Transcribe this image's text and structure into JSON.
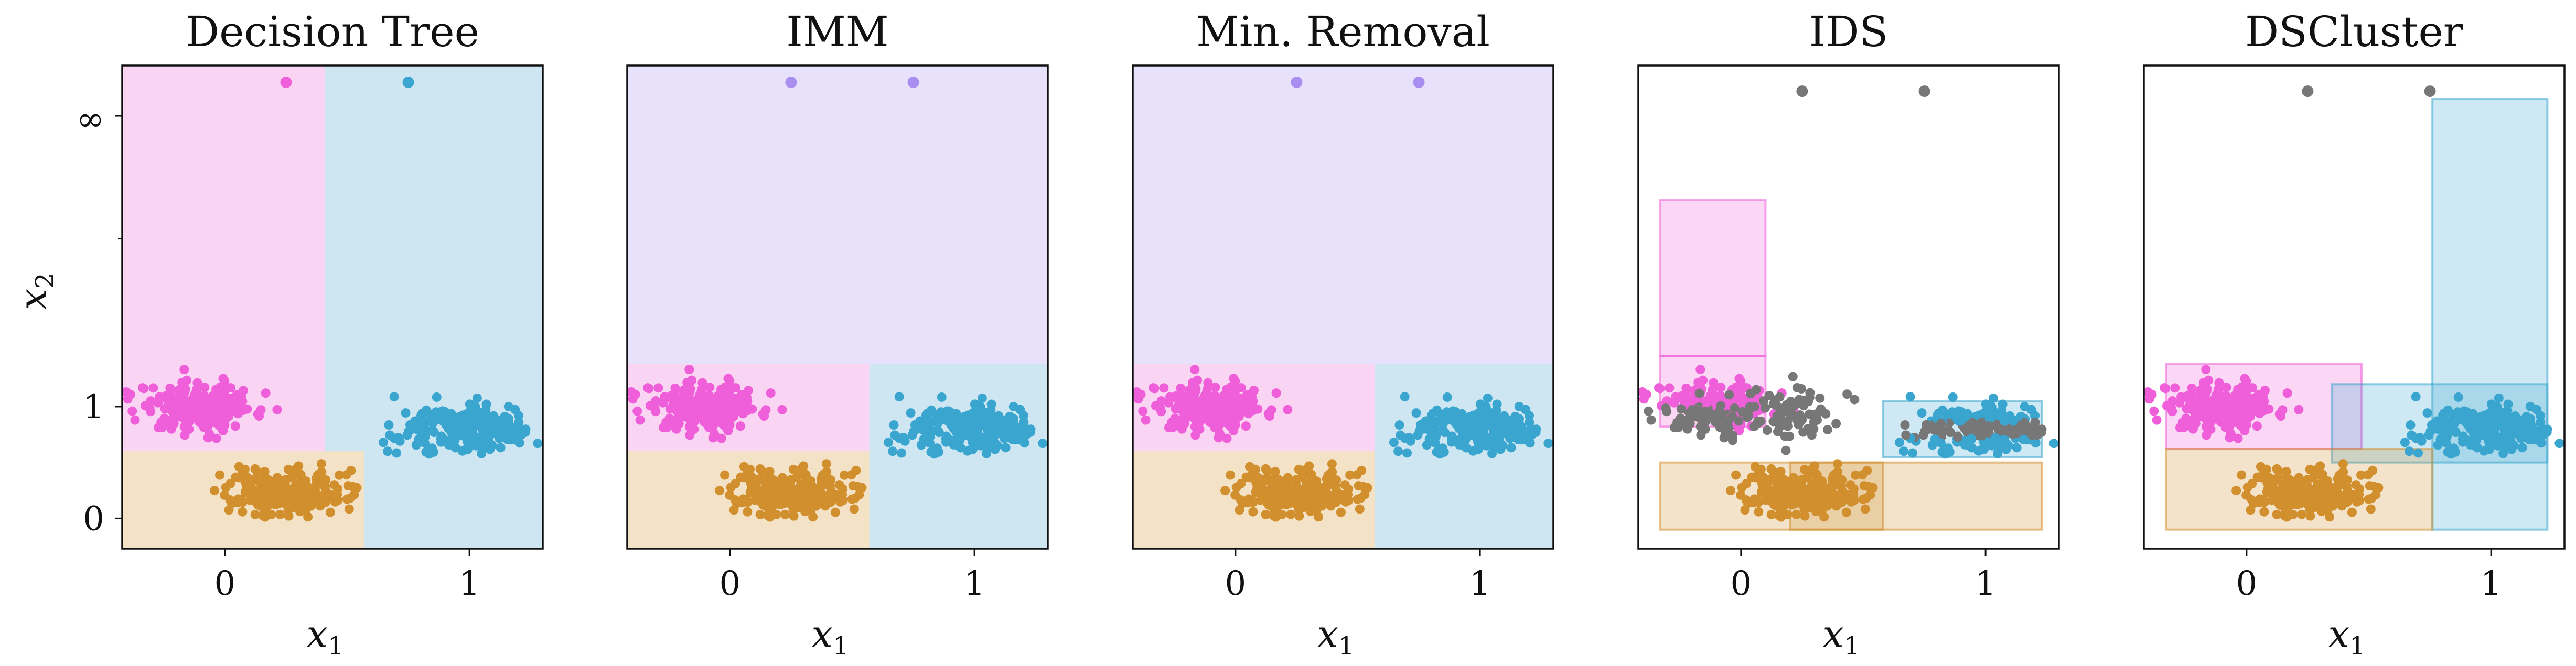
{
  "chart_data": {
    "type": "scatter",
    "description_note": "",
    "shared": {
      "x_ticks": [
        0,
        1
      ],
      "y_ticks": [
        {
          "value": 0,
          "label": "0"
        },
        {
          "value": 1,
          "label": "1"
        },
        {
          "value": 3.6,
          "label": "∞"
        }
      ],
      "y_minor_tick": 2.5,
      "xlim": [
        -0.42,
        1.3
      ],
      "ylim": [
        -0.27,
        4.05
      ],
      "y_inf_value": 3.9,
      "xlabel": "x",
      "xlabel_sub": "1",
      "ylabel": "x",
      "ylabel_sub": "2",
      "colors": {
        "pink": "#ef5fd9",
        "blue": "#3aa6d0",
        "orange": "#d18f2e",
        "purple": "#a98ef0",
        "gray": "#777777"
      },
      "clusters": [
        {
          "name": "pink-cluster",
          "cx": -0.1,
          "cy": 1.0,
          "sx": 0.12,
          "sy": 0.11
        },
        {
          "name": "blue-cluster",
          "cx": 0.97,
          "cy": 0.8,
          "sx": 0.12,
          "sy": 0.1
        },
        {
          "name": "orange-cluster",
          "cx": 0.25,
          "cy": 0.22,
          "sx": 0.12,
          "sy": 0.09
        }
      ],
      "outliers": [
        {
          "x": 0.25
        },
        {
          "x": 0.75
        }
      ]
    },
    "panels": [
      {
        "title": "Decision Tree",
        "outlier_colors": [
          "pink",
          "blue"
        ],
        "regions": [
          {
            "x0": -0.42,
            "x1": 0.41,
            "y0": 0.6,
            "y1": 4.05,
            "color": "#fad5f3",
            "border": false
          },
          {
            "x0": 0.41,
            "x1": 1.3,
            "y0": -0.27,
            "y1": 4.05,
            "color": "#cde6f1",
            "border": false
          },
          {
            "x0": -0.42,
            "x1": 0.57,
            "y0": -0.27,
            "y1": 0.6,
            "color": "#f3e2c6",
            "border": false
          }
        ]
      },
      {
        "title": "IMM",
        "outlier_colors": [
          "purple",
          "purple"
        ],
        "regions": [
          {
            "x0": -0.42,
            "x1": 1.3,
            "y0": 1.38,
            "y1": 4.05,
            "color": "#e7e1fb",
            "border": false
          },
          {
            "x0": -0.42,
            "x1": 0.57,
            "y0": 0.6,
            "y1": 1.38,
            "color": "#fad5f3",
            "border": false
          },
          {
            "x0": 0.57,
            "x1": 1.3,
            "y0": -0.27,
            "y1": 1.38,
            "color": "#cde6f1",
            "border": false
          },
          {
            "x0": -0.42,
            "x1": 0.57,
            "y0": -0.27,
            "y1": 0.6,
            "color": "#f3e2c6",
            "border": false
          }
        ]
      },
      {
        "title": "Min. Removal",
        "outlier_colors": [
          "purple",
          "purple"
        ],
        "regions": [
          {
            "x0": -0.42,
            "x1": 1.3,
            "y0": 1.38,
            "y1": 4.05,
            "color": "#e7e1fb",
            "border": false
          },
          {
            "x0": -0.42,
            "x1": 0.57,
            "y0": 0.6,
            "y1": 1.38,
            "color": "#fad5f3",
            "border": false
          },
          {
            "x0": 0.57,
            "x1": 1.3,
            "y0": -0.27,
            "y1": 1.38,
            "color": "#cde6f1",
            "border": false
          },
          {
            "x0": -0.42,
            "x1": 0.57,
            "y0": -0.27,
            "y1": 0.6,
            "color": "#f3e2c6",
            "border": false
          }
        ]
      },
      {
        "title": "IDS",
        "outlier_colors": [
          "gray",
          "gray"
        ],
        "regions": [
          {
            "x0": -0.33,
            "x1": 0.1,
            "y0": 0.82,
            "y1": 1.45,
            "color": "#ef5fd9",
            "border": true
          },
          {
            "x0": -0.33,
            "x1": 0.1,
            "y0": 1.45,
            "y1": 2.85,
            "color": "#ef5fd9",
            "border": true
          },
          {
            "x0": 0.58,
            "x1": 1.23,
            "y0": 0.55,
            "y1": 1.05,
            "color": "#3aa6d0",
            "border": true
          },
          {
            "x0": -0.33,
            "x1": 0.58,
            "y0": -0.1,
            "y1": 0.5,
            "color": "#d18f2e",
            "border": true
          },
          {
            "x0": 0.2,
            "x1": 1.23,
            "y0": -0.1,
            "y1": 0.5,
            "color": "#d18f2e",
            "border": true
          }
        ]
      },
      {
        "title": "DSCluster",
        "outlier_colors": [
          "gray",
          "gray"
        ],
        "regions": [
          {
            "x0": -0.33,
            "x1": 0.47,
            "y0": 0.62,
            "y1": 1.38,
            "color": "#ef5fd9",
            "border": true
          },
          {
            "x0": 0.35,
            "x1": 1.23,
            "y0": 0.5,
            "y1": 1.2,
            "color": "#3aa6d0",
            "border": true
          },
          {
            "x0": 0.76,
            "x1": 1.23,
            "y0": -0.1,
            "y1": 3.75,
            "color": "#3aa6d0",
            "border": true
          },
          {
            "x0": -0.33,
            "x1": 0.76,
            "y0": -0.1,
            "y1": 0.62,
            "color": "#d18f2e",
            "border": true
          }
        ]
      }
    ]
  }
}
